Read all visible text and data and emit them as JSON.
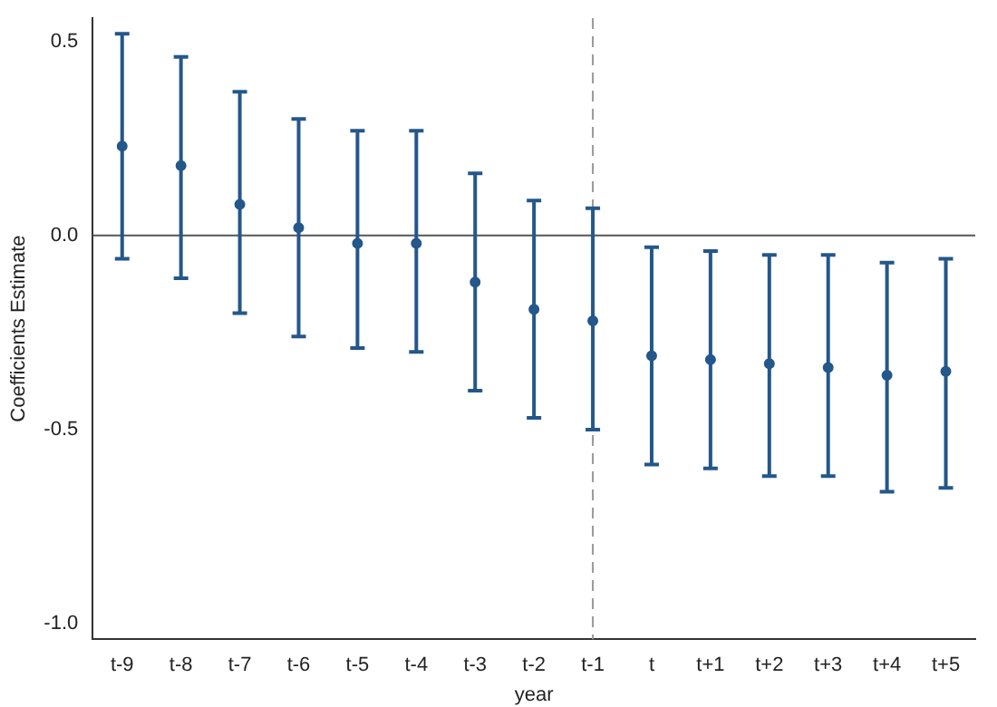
{
  "chart_data": {
    "type": "scatter",
    "xlabel": "year",
    "ylabel": "Coefficients Estimate",
    "categories": [
      "t-9",
      "t-8",
      "t-7",
      "t-6",
      "t-5",
      "t-4",
      "t-3",
      "t-2",
      "t-1",
      "t",
      "t+1",
      "t+2",
      "t+3",
      "t+4",
      "t+5"
    ],
    "series": [
      {
        "color": "#24578a",
        "values": [
          0.23,
          0.18,
          0.08,
          0.02,
          -0.02,
          -0.02,
          -0.12,
          -0.19,
          -0.22,
          -0.31,
          -0.32,
          -0.33,
          -0.34,
          -0.36,
          -0.35
        ],
        "errors": [
          [
            -0.06,
            0.52
          ],
          [
            -0.11,
            0.46
          ],
          [
            -0.2,
            0.37
          ],
          [
            -0.26,
            0.3
          ],
          [
            -0.29,
            0.27
          ],
          [
            -0.3,
            0.27
          ],
          [
            -0.4,
            0.16
          ],
          [
            -0.47,
            0.09
          ],
          [
            -0.5,
            0.07
          ],
          [
            -0.59,
            -0.03
          ],
          [
            -0.6,
            -0.04
          ],
          [
            -0.62,
            -0.05
          ],
          [
            -0.62,
            -0.05
          ],
          [
            -0.66,
            -0.07
          ],
          [
            -0.65,
            -0.06
          ]
        ]
      }
    ],
    "marker": "circle",
    "grid": false,
    "legend": false,
    "ylim": [
      -1.04,
      0.56
    ],
    "yticks": [
      {
        "value": -1,
        "label": "-1.0"
      },
      {
        "value": -0.5,
        "label": "-0.5"
      },
      {
        "value": 0,
        "label": "0.0"
      },
      {
        "value": 0.5,
        "label": "0.5"
      }
    ],
    "ref_lines": [
      {
        "axis": "y",
        "value": 0,
        "color": "#555555",
        "line_style": "solid"
      },
      {
        "axis": "x",
        "value": "t-1",
        "color": "#999999",
        "line_style": "dashed"
      }
    ]
  }
}
